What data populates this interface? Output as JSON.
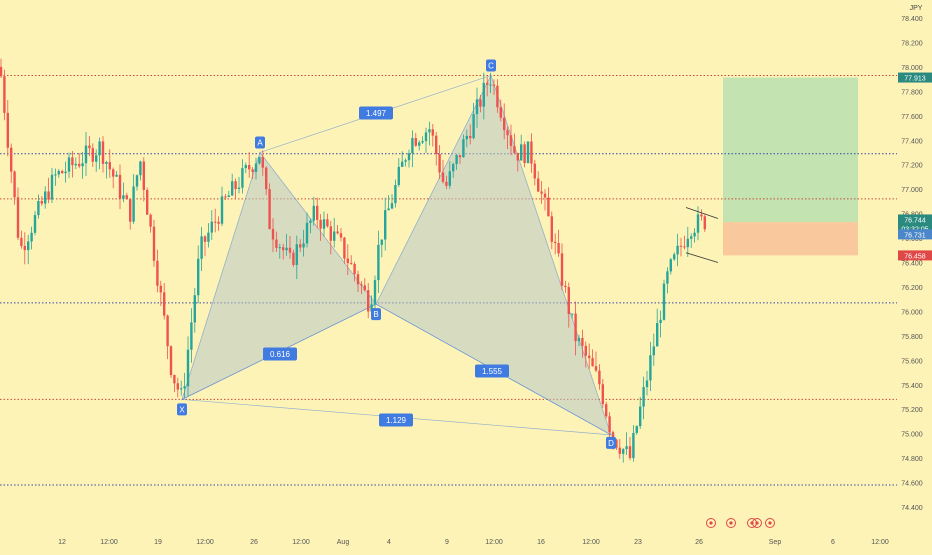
{
  "currency": "JPY",
  "colors": {
    "background": "#fdf3b6",
    "up": "#26a69a",
    "down": "#ef5350",
    "level_blue": "#3448a8",
    "level_red": "#c94a3a",
    "pattern_fill": "#b9c9c8",
    "pattern_line": "#3f7be0",
    "target_zone": "#b8dfb0",
    "stop_zone": "#f8c39a",
    "tag_last": "#2a8a80",
    "tag_stop": "#e04848",
    "tag_price": "#4a86c9"
  },
  "price_axis": {
    "tick_labels": [
      "78.400",
      "78.200",
      "78.000",
      "77.800",
      "77.600",
      "77.400",
      "77.200",
      "77.000",
      "76.800",
      "76.600",
      "76.400",
      "76.200",
      "76.000",
      "75.800",
      "75.600",
      "75.400",
      "75.200",
      "75.000",
      "74.800",
      "74.600",
      "74.400"
    ]
  },
  "time_axis": {
    "tick_labels": [
      "12",
      "12:00",
      "19",
      "12:00",
      "26",
      "12:00",
      "Aug",
      "4",
      "9",
      "12:00",
      "16",
      "12:00",
      "23",
      "26",
      "Sep",
      "6",
      "12:00"
    ]
  },
  "price_tags": {
    "target": "77.913",
    "last": "76.744",
    "countdown": "03:32:05",
    "price_line": "76.731",
    "stop": "76.458"
  },
  "pattern": {
    "points": [
      {
        "label": "X",
        "price": 75.28
      },
      {
        "label": "A",
        "price": 77.3
      },
      {
        "label": "B",
        "price": 76.06
      },
      {
        "label": "C",
        "price": 77.93
      },
      {
        "label": "D",
        "price": 74.99
      }
    ],
    "ratios": {
      "xab": "0.616",
      "abc": "1.497",
      "bcd": "1.555",
      "xad": "1.129"
    }
  },
  "chart_data": {
    "type": "candlestick",
    "yaxis_label": "JPY",
    "ylim": [
      74.33,
      78.55
    ],
    "yticks": [
      78.4,
      78.2,
      78.0,
      77.8,
      77.6,
      77.4,
      77.2,
      77.0,
      76.8,
      76.6,
      76.4,
      76.2,
      76.0,
      75.8,
      75.6,
      75.4,
      75.2,
      75.0,
      74.8,
      74.6,
      74.4
    ],
    "horizontal_levels": [
      {
        "price": 77.93,
        "style": "dotted",
        "color": "red"
      },
      {
        "price": 77.29,
        "style": "dotted",
        "color": "blue"
      },
      {
        "price": 76.92,
        "style": "dotted",
        "color": "red"
      },
      {
        "price": 76.07,
        "style": "dotted",
        "color": "blue"
      },
      {
        "price": 75.28,
        "style": "dotted",
        "color": "red"
      },
      {
        "price": 74.58,
        "style": "dotted",
        "color": "blue"
      }
    ],
    "position_tool": {
      "entry": 76.73,
      "target": 77.913,
      "stop": 76.458
    },
    "harmonic_pattern": {
      "points": {
        "X": 75.28,
        "A": 77.3,
        "B": 76.06,
        "C": 77.93,
        "D": 74.99
      },
      "ratios": {
        "XAB": 0.616,
        "ABC": 1.497,
        "BCD": 1.555,
        "XAD": 1.129
      }
    },
    "series": [
      {
        "type": "candles",
        "waypoints": [
          [
            78.0,
            0
          ],
          [
            76.5,
            20
          ],
          [
            77.1,
            55
          ],
          [
            77.35,
            100
          ],
          [
            76.8,
            130
          ],
          [
            77.25,
            140
          ],
          [
            75.5,
            172
          ],
          [
            75.28,
            182
          ],
          [
            76.5,
            200
          ],
          [
            76.9,
            225
          ],
          [
            77.3,
            260
          ],
          [
            76.7,
            270
          ],
          [
            76.4,
            290
          ],
          [
            76.8,
            315
          ],
          [
            76.55,
            340
          ],
          [
            76.06,
            370
          ],
          [
            76.6,
            380
          ],
          [
            77.4,
            410
          ],
          [
            77.5,
            430
          ],
          [
            77.0,
            445
          ],
          [
            77.5,
            470
          ],
          [
            77.93,
            490
          ],
          [
            77.3,
            515
          ],
          [
            77.3,
            530
          ],
          [
            76.7,
            550
          ],
          [
            75.8,
            575
          ],
          [
            75.4,
            600
          ],
          [
            74.99,
            612
          ],
          [
            74.8,
            630
          ],
          [
            75.5,
            648
          ],
          [
            76.3,
            668
          ],
          [
            76.7,
            690
          ],
          [
            76.74,
            705
          ]
        ]
      }
    ],
    "markers": 5
  }
}
